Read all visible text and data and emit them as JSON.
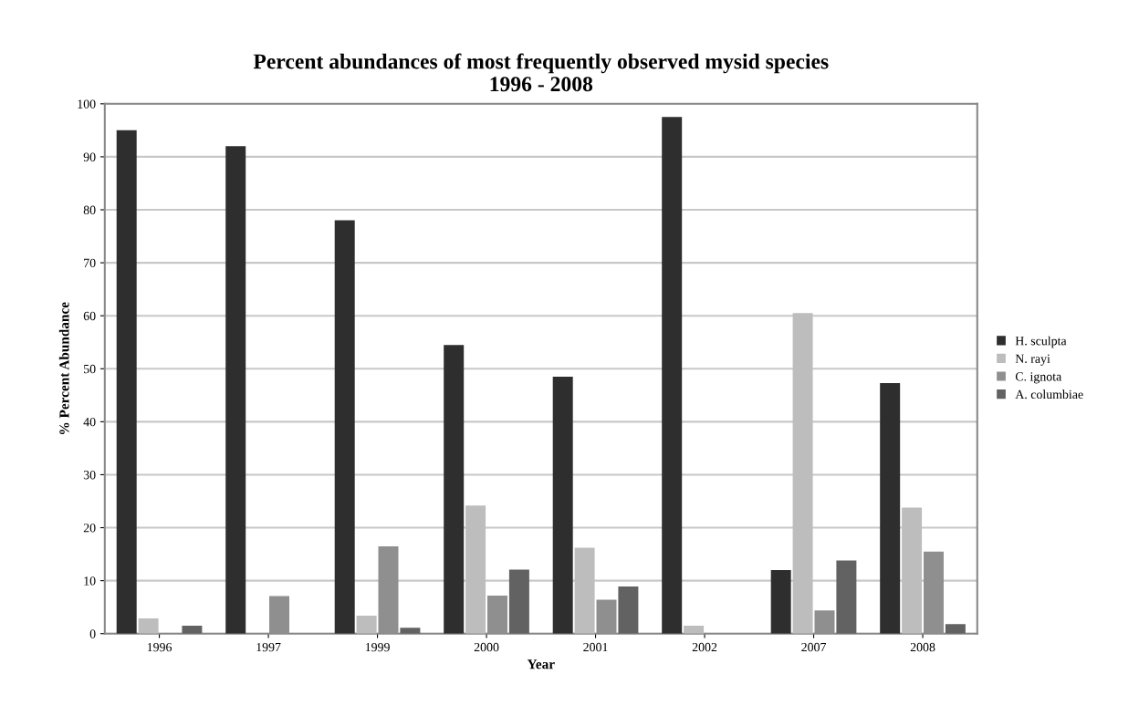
{
  "chart_data": {
    "type": "bar",
    "title": "Percent abundances of most frequently observed mysid species\n1996 - 2008",
    "xlabel": "Year",
    "ylabel": "% Percent Abundance",
    "categories": [
      "1996",
      "1997",
      "1999",
      "2000",
      "2001",
      "2002",
      "2007",
      "2008"
    ],
    "series": [
      {
        "name": "H. sculpta",
        "color": "#2e2e2e",
        "values": [
          95,
          92,
          78,
          54.5,
          48.5,
          97.5,
          12,
          47.3
        ]
      },
      {
        "name": "N. rayi",
        "color": "#bdbdbd",
        "values": [
          2.9,
          0,
          3.4,
          24.2,
          16.2,
          1.5,
          60.5,
          23.8
        ]
      },
      {
        "name": "C. ignota",
        "color": "#8f8f8f",
        "values": [
          0,
          7.1,
          16.5,
          7.2,
          6.4,
          0,
          4.4,
          15.5
        ]
      },
      {
        "name": "A. columbiae",
        "color": "#626262",
        "values": [
          1.5,
          0,
          1.1,
          12.1,
          8.9,
          0,
          13.8,
          1.8
        ]
      }
    ],
    "ylim": [
      0,
      100
    ],
    "yticks": [
      0,
      10,
      20,
      30,
      40,
      50,
      60,
      70,
      80,
      90,
      100
    ],
    "grid": "y",
    "legend": "right"
  }
}
